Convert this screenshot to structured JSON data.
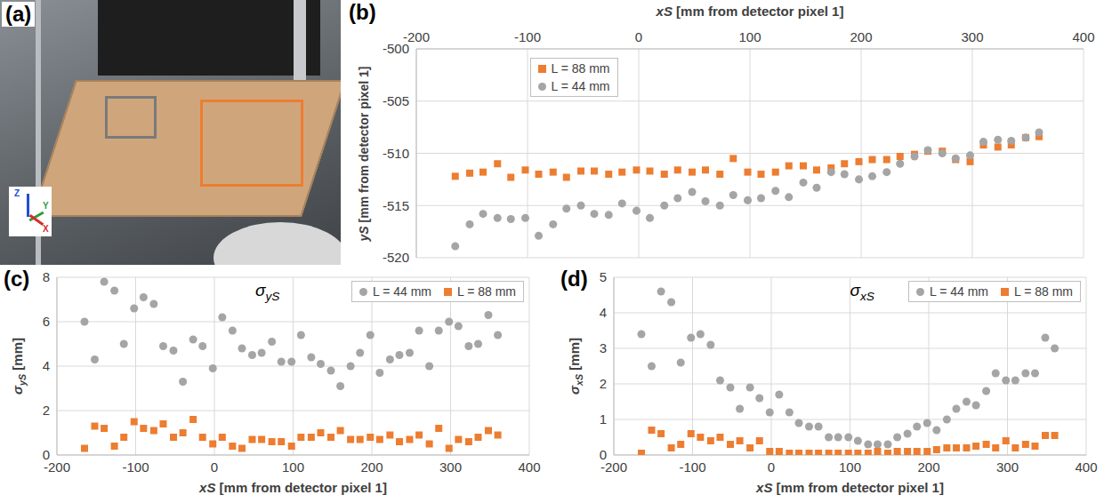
{
  "photo": {
    "label": "(a)",
    "axes": [
      "Z",
      "Y",
      "X"
    ]
  },
  "chart_data": [
    {
      "type": "scatter",
      "label": "(b)",
      "xlabel": "xS [mm from detector pixel 1]",
      "ylabel": "yS [mm from detector pixel 1]",
      "x": [
        -165,
        -152,
        -140,
        -127,
        -115,
        -102,
        -90,
        -77,
        -65,
        -52,
        -40,
        -27,
        -15,
        -2,
        10,
        23,
        35,
        48,
        60,
        73,
        85,
        98,
        110,
        123,
        135,
        148,
        160,
        173,
        185,
        198,
        210,
        223,
        235,
        248,
        260,
        273,
        285,
        298,
        310,
        323,
        335,
        348,
        360
      ],
      "xlim": [
        -200,
        400
      ],
      "xticks": [
        -200,
        -100,
        0,
        100,
        200,
        300,
        400
      ],
      "ylim": [
        -520,
        -500
      ],
      "yticks": [
        -520,
        -515,
        -510,
        -505,
        -500
      ],
      "grid": true,
      "legend": "upper left",
      "series": [
        {
          "name": "L = 88 mm",
          "color": "#ed7d31",
          "marker": "square",
          "values": [
            -512.2,
            -511.9,
            -511.8,
            -511.0,
            -512.3,
            -511.6,
            -512.0,
            -511.8,
            -512.3,
            -511.7,
            -511.7,
            -512.0,
            -511.8,
            -511.6,
            -511.7,
            -512.0,
            -511.6,
            -511.8,
            -511.6,
            -512.0,
            -510.5,
            -511.8,
            -512.0,
            -511.8,
            -511.2,
            -511.2,
            -511.6,
            -511.4,
            -511.0,
            -510.8,
            -510.6,
            -510.6,
            -510.3,
            -510.1,
            -509.8,
            -509.8,
            -510.6,
            -510.8,
            -509.2,
            -509.4,
            -509.2,
            -508.5,
            -508.4
          ]
        },
        {
          "name": "L = 44 mm",
          "color": "#a5a5a5",
          "marker": "circle",
          "values": [
            -518.9,
            -516.8,
            -515.8,
            -516.2,
            -516.3,
            -516.2,
            -517.9,
            -516.8,
            -515.3,
            -515.0,
            -515.8,
            -515.9,
            -514.8,
            -515.5,
            -516.2,
            -515.0,
            -514.3,
            -513.7,
            -514.6,
            -515.0,
            -514.0,
            -514.5,
            -514.3,
            -513.6,
            -514.2,
            -512.8,
            -513.3,
            -511.8,
            -512.0,
            -512.5,
            -512.2,
            -511.8,
            -511.0,
            -510.3,
            -509.7,
            -510.0,
            -510.5,
            -510.2,
            -508.9,
            -508.7,
            -508.8,
            -508.5,
            -508.0
          ]
        }
      ]
    },
    {
      "type": "scatter",
      "label": "(c)",
      "title": "σyS",
      "xlabel": "xS [mm from detector pixel 1]",
      "ylabel": "σyS [mm]",
      "x": [
        -165,
        -152,
        -140,
        -127,
        -115,
        -102,
        -90,
        -77,
        -65,
        -52,
        -40,
        -27,
        -15,
        -2,
        10,
        23,
        35,
        48,
        60,
        73,
        85,
        98,
        110,
        123,
        135,
        148,
        160,
        173,
        185,
        198,
        210,
        223,
        235,
        248,
        260,
        273,
        285,
        298,
        310,
        323,
        335,
        348,
        360
      ],
      "xlim": [
        -200,
        400
      ],
      "xticks": [
        -200,
        -100,
        0,
        100,
        200,
        300,
        400
      ],
      "ylim": [
        0,
        8
      ],
      "yticks": [
        0,
        2,
        4,
        6,
        8
      ],
      "grid": true,
      "legend": "upper right",
      "series": [
        {
          "name": "L = 44 mm",
          "color": "#a5a5a5",
          "marker": "circle",
          "values": [
            6.0,
            4.3,
            7.8,
            7.4,
            5.0,
            6.6,
            7.1,
            6.8,
            4.9,
            4.7,
            3.3,
            5.2,
            4.9,
            3.9,
            6.2,
            5.6,
            4.8,
            4.5,
            4.6,
            5.1,
            4.2,
            4.2,
            5.4,
            4.4,
            4.1,
            3.8,
            3.1,
            4.0,
            4.6,
            5.4,
            3.7,
            4.3,
            4.5,
            4.6,
            5.6,
            4.0,
            5.6,
            6.0,
            5.8,
            4.9,
            5.0,
            6.3,
            5.4
          ]
        },
        {
          "name": "L = 88 mm",
          "color": "#ed7d31",
          "marker": "square",
          "values": [
            0.3,
            1.3,
            1.2,
            0.4,
            0.8,
            1.5,
            1.2,
            1.1,
            1.4,
            0.8,
            1.0,
            1.6,
            0.8,
            0.5,
            0.8,
            0.4,
            0.3,
            0.7,
            0.7,
            0.6,
            0.6,
            0.4,
            0.8,
            0.8,
            1.0,
            0.8,
            1.1,
            0.7,
            0.7,
            0.8,
            0.7,
            0.9,
            0.6,
            0.7,
            0.9,
            0.5,
            1.2,
            0.3,
            0.7,
            0.6,
            0.8,
            1.1,
            0.9
          ]
        }
      ]
    },
    {
      "type": "scatter",
      "label": "(d)",
      "title": "σxS",
      "xlabel": "xS [mm from detector pixel 1]",
      "ylabel": "σxS [mm]",
      "x": [
        -165,
        -152,
        -140,
        -127,
        -115,
        -102,
        -90,
        -77,
        -65,
        -52,
        -40,
        -27,
        -15,
        -2,
        10,
        23,
        35,
        48,
        60,
        73,
        85,
        98,
        110,
        123,
        135,
        148,
        160,
        173,
        185,
        198,
        210,
        223,
        235,
        248,
        260,
        273,
        285,
        298,
        310,
        323,
        335,
        348,
        360
      ],
      "xlim": [
        -200,
        400
      ],
      "xticks": [
        -200,
        -100,
        0,
        100,
        200,
        300,
        400
      ],
      "ylim": [
        0,
        5
      ],
      "yticks": [
        0,
        1,
        2,
        3,
        4,
        5
      ],
      "grid": true,
      "legend": "upper right",
      "series": [
        {
          "name": "L = 44 mm",
          "color": "#a5a5a5",
          "marker": "circle",
          "values": [
            3.4,
            2.5,
            4.6,
            4.3,
            2.6,
            3.3,
            3.4,
            3.1,
            2.1,
            1.9,
            1.3,
            1.9,
            1.6,
            1.2,
            1.7,
            1.2,
            0.9,
            0.8,
            0.8,
            0.5,
            0.5,
            0.5,
            0.4,
            0.3,
            0.3,
            0.3,
            0.5,
            0.6,
            0.8,
            0.9,
            0.7,
            1.0,
            1.3,
            1.5,
            1.4,
            1.8,
            2.3,
            2.1,
            2.1,
            2.3,
            2.3,
            3.3,
            3.0
          ]
        },
        {
          "name": "L = 88 mm",
          "color": "#ed7d31",
          "marker": "square",
          "values": [
            0.05,
            0.7,
            0.6,
            0.2,
            0.3,
            0.6,
            0.5,
            0.4,
            0.5,
            0.3,
            0.4,
            0.2,
            0.4,
            0.1,
            0.1,
            0.05,
            0.05,
            0.05,
            0.05,
            0.05,
            0.05,
            0.05,
            0.05,
            0.05,
            0.1,
            0.05,
            0.1,
            0.1,
            0.1,
            0.1,
            0.15,
            0.2,
            0.2,
            0.2,
            0.25,
            0.3,
            0.2,
            0.4,
            0.2,
            0.3,
            0.25,
            0.55,
            0.55
          ]
        }
      ]
    }
  ]
}
